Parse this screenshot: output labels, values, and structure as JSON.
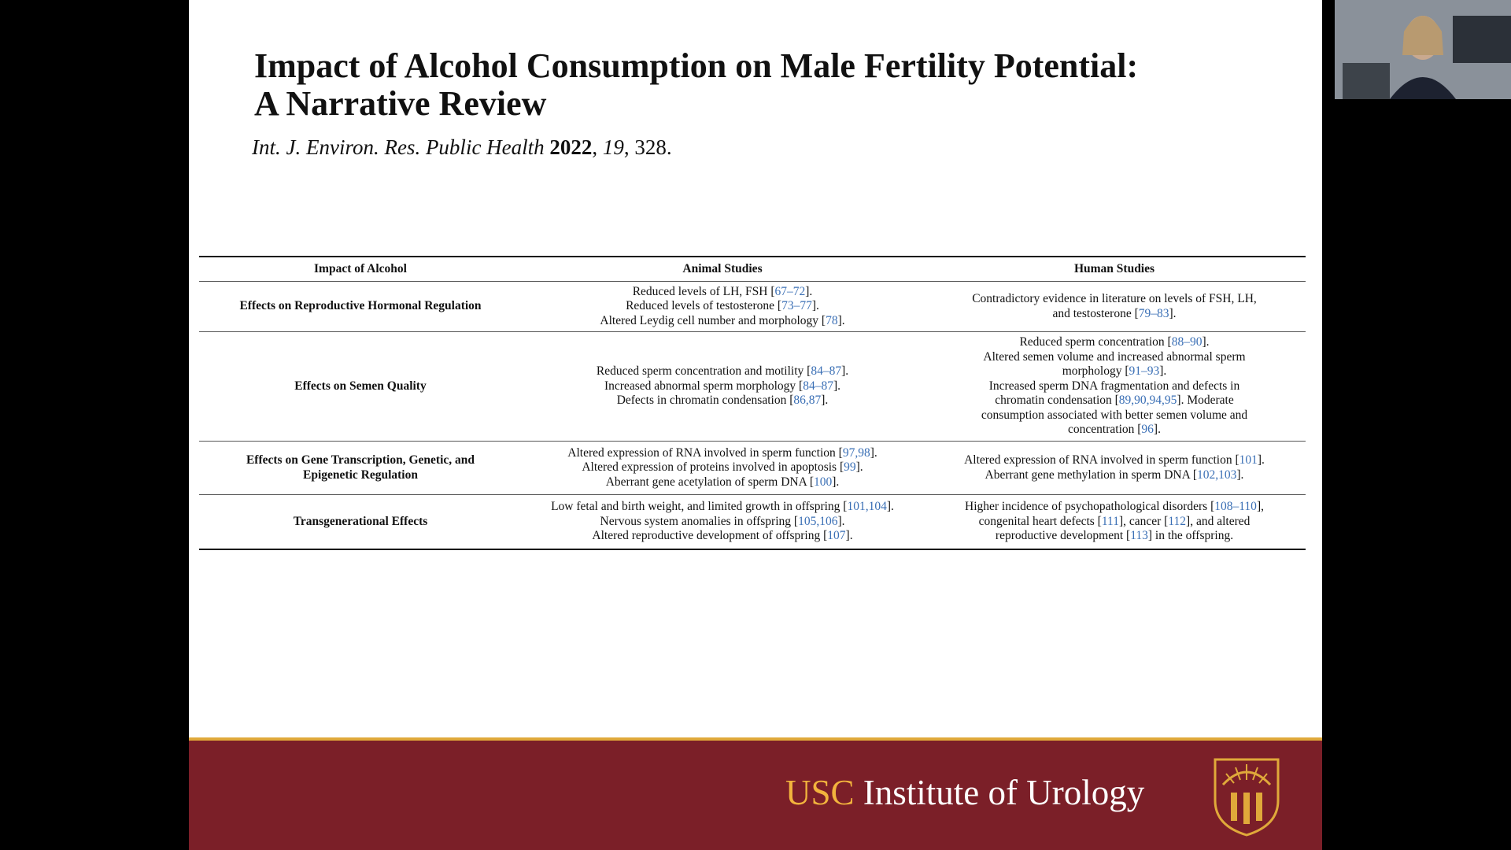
{
  "slide": {
    "title_lines": [
      "Impact of Alcohol Consumption on Male Fertility Potential:",
      "A Narrative Review"
    ],
    "citation": [
      "Int. J. Environ. Res. Public Health ",
      "2022",
      ", ",
      "19",
      ", 328."
    ],
    "table": {
      "headers": [
        "Impact of Alcohol",
        "Animal Studies",
        "Human Studies"
      ],
      "rows": [
        {
          "label": [
            "Effects on Reproductive Hormonal Regulation"
          ],
          "animal": [
            [
              "Reduced levels of LH, FSH [",
              "67–72",
              "]."
            ],
            [
              "Reduced levels of testosterone [",
              "73–77",
              "]."
            ],
            [
              "Altered Leydig cell number and morphology [",
              "78",
              "]."
            ]
          ],
          "human": [
            [
              "Contradictory evidence in literature on levels of FSH, LH,"
            ],
            [
              "and testosterone [",
              "79–83",
              "]."
            ]
          ]
        },
        {
          "label": [
            "Effects on Semen Quality"
          ],
          "animal": [
            [
              "Reduced sperm concentration and motility [",
              "84–87",
              "]."
            ],
            [
              "Increased abnormal sperm morphology [",
              "84–87",
              "]."
            ],
            [
              "Defects in chromatin condensation [",
              "86,87",
              "]."
            ]
          ],
          "human": [
            [
              "Reduced sperm concentration [",
              "88–90",
              "]."
            ],
            [
              "Altered semen volume and increased abnormal sperm"
            ],
            [
              "morphology [",
              "91–93",
              "]."
            ],
            [
              "Increased sperm DNA fragmentation and defects in"
            ],
            [
              "chromatin condensation [",
              "89,90,94,95",
              "]. Moderate"
            ],
            [
              "consumption associated with better semen volume and"
            ],
            [
              "concentration [",
              "96",
              "]."
            ]
          ]
        },
        {
          "label": [
            "Effects on Gene Transcription, Genetic, and",
            "Epigenetic Regulation"
          ],
          "animal": [
            [
              "Altered expression of RNA involved in sperm function [",
              "97,98",
              "]."
            ],
            [
              "Altered expression of proteins involved in apoptosis [",
              "99",
              "]."
            ],
            [
              "Aberrant gene acetylation of sperm DNA [",
              "100",
              "]."
            ]
          ],
          "human": [
            [
              "Altered expression of RNA involved in sperm function [",
              "101",
              "]."
            ],
            [
              "Aberrant gene methylation in sperm DNA [",
              "102,103",
              "]."
            ]
          ]
        },
        {
          "label": [
            "Transgenerational Effects"
          ],
          "animal": [
            [
              "Low fetal and birth weight, and limited growth in offspring [",
              "101,104",
              "]."
            ],
            [
              "Nervous system anomalies in offspring [",
              "105,106",
              "]."
            ],
            [
              "Altered reproductive development of offspring [",
              "107",
              "]."
            ]
          ],
          "human": [
            [
              "Higher incidence of psychopathological disorders [",
              "108–110",
              "],"
            ],
            [
              "congenital heart defects [",
              "111",
              "], cancer [",
              "112",
              "], and altered"
            ],
            [
              "reproductive development [",
              "113",
              "] in the offspring."
            ]
          ]
        }
      ]
    },
    "footer": {
      "usc": "USC",
      "institute": " Institute of Urology"
    }
  }
}
